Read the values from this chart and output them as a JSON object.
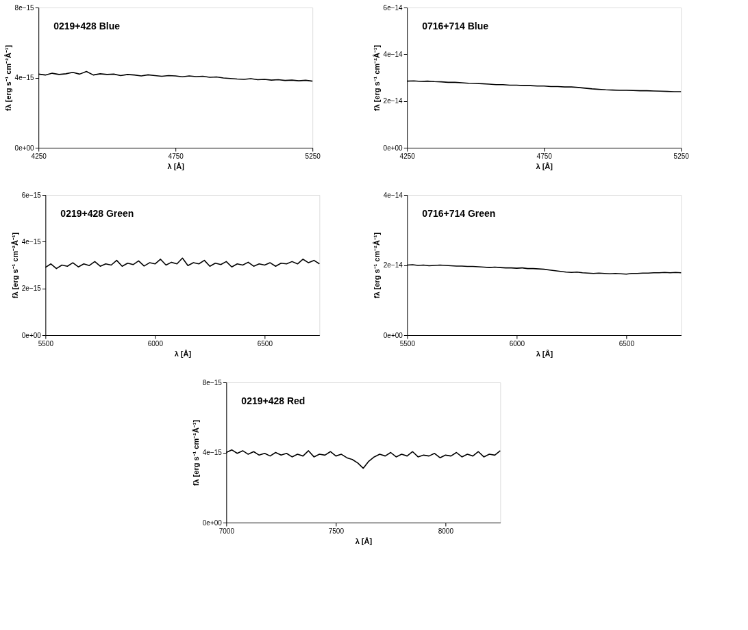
{
  "chart_data": [
    {
      "type": "line",
      "title": "0219+428 Blue",
      "xlabel": "λ [Å]",
      "ylabel": "fλ [erg s⁻¹ cm⁻²Å⁻¹]",
      "color": "#000000",
      "x": [
        4250,
        4275,
        4300,
        4325,
        4350,
        4375,
        4400,
        4425,
        4450,
        4475,
        4500,
        4525,
        4550,
        4575,
        4600,
        4625,
        4650,
        4675,
        4700,
        4725,
        4750,
        4775,
        4800,
        4825,
        4850,
        4875,
        4900,
        4925,
        4950,
        4975,
        5000,
        5025,
        5050,
        5075,
        5100,
        5125,
        5150,
        5175,
        5200,
        5225,
        5250
      ],
      "values": [
        4.2e-15,
        4.15e-15,
        4.25e-15,
        4.18e-15,
        4.22e-15,
        4.3e-15,
        4.2e-15,
        4.35e-15,
        4.15e-15,
        4.22e-15,
        4.18e-15,
        4.2e-15,
        4.12e-15,
        4.18e-15,
        4.15e-15,
        4.1e-15,
        4.16e-15,
        4.12e-15,
        4.08e-15,
        4.12e-15,
        4.1e-15,
        4.05e-15,
        4.1e-15,
        4.06e-15,
        4.08e-15,
        4.02e-15,
        4.04e-15,
        3.98e-15,
        3.95e-15,
        3.92e-15,
        3.9e-15,
        3.94e-15,
        3.88e-15,
        3.9e-15,
        3.86e-15,
        3.88e-15,
        3.84e-15,
        3.86e-15,
        3.82e-15,
        3.85e-15,
        3.8e-15
      ],
      "xlim": [
        4250,
        5250
      ],
      "xticks": [
        4250,
        4750,
        5250
      ],
      "ylim": [
        0,
        8e-15
      ],
      "yticks": [
        {
          "value": 0,
          "label": "0e+00"
        },
        {
          "value": 4e-15,
          "label": "4e−15"
        },
        {
          "value": 8e-15,
          "label": "8e−15"
        }
      ]
    },
    {
      "type": "line",
      "title": "0716+714 Blue",
      "xlabel": "λ [Å]",
      "ylabel": "fλ [erg s⁻¹ cm⁻²Å⁻¹]",
      "color": "#000000",
      "x": [
        4250,
        4275,
        4300,
        4325,
        4350,
        4375,
        4400,
        4425,
        4450,
        4475,
        4500,
        4525,
        4550,
        4575,
        4600,
        4625,
        4650,
        4675,
        4700,
        4725,
        4750,
        4775,
        4800,
        4825,
        4850,
        4875,
        4900,
        4925,
        4950,
        4975,
        5000,
        5025,
        5050,
        5075,
        5100,
        5125,
        5150,
        5175,
        5200,
        5225,
        5250
      ],
      "values": [
        2.85e-14,
        2.86e-14,
        2.84e-14,
        2.85e-14,
        2.83e-14,
        2.82e-14,
        2.8e-14,
        2.8e-14,
        2.78e-14,
        2.76e-14,
        2.75e-14,
        2.74e-14,
        2.72e-14,
        2.7e-14,
        2.7e-14,
        2.68e-14,
        2.68e-14,
        2.66e-14,
        2.66e-14,
        2.64e-14,
        2.64e-14,
        2.62e-14,
        2.62e-14,
        2.6e-14,
        2.6e-14,
        2.58e-14,
        2.55e-14,
        2.52e-14,
        2.5e-14,
        2.48e-14,
        2.47e-14,
        2.46e-14,
        2.46e-14,
        2.45e-14,
        2.44e-14,
        2.44e-14,
        2.43e-14,
        2.42e-14,
        2.41e-14,
        2.4e-14,
        2.4e-14
      ],
      "xlim": [
        4250,
        5250
      ],
      "xticks": [
        4250,
        4750,
        5250
      ],
      "ylim": [
        0,
        6e-14
      ],
      "yticks": [
        {
          "value": 0,
          "label": "0e+00"
        },
        {
          "value": 2e-14,
          "label": "2e−14"
        },
        {
          "value": 4e-14,
          "label": "4e−14"
        },
        {
          "value": 6e-14,
          "label": "6e−14"
        }
      ]
    },
    {
      "type": "line",
      "title": "0219+428 Green",
      "xlabel": "λ [Å]",
      "ylabel": "fλ [erg s⁻¹ cm⁻²Å⁻¹]",
      "color": "#000000",
      "x": [
        5500,
        5525,
        5550,
        5575,
        5600,
        5625,
        5650,
        5675,
        5700,
        5725,
        5750,
        5775,
        5800,
        5825,
        5850,
        5875,
        5900,
        5925,
        5950,
        5975,
        6000,
        6025,
        6050,
        6075,
        6100,
        6125,
        6150,
        6175,
        6200,
        6225,
        6250,
        6275,
        6300,
        6325,
        6350,
        6375,
        6400,
        6425,
        6450,
        6475,
        6500,
        6525,
        6550,
        6575,
        6600,
        6625,
        6650,
        6675,
        6700,
        6725,
        6750
      ],
      "values": [
        2.9e-15,
        3.05e-15,
        2.85e-15,
        3e-15,
        2.95e-15,
        3.1e-15,
        2.92e-15,
        3.05e-15,
        2.98e-15,
        3.15e-15,
        2.95e-15,
        3.05e-15,
        3e-15,
        3.2e-15,
        2.95e-15,
        3.08e-15,
        3.02e-15,
        3.18e-15,
        2.96e-15,
        3.1e-15,
        3.05e-15,
        3.25e-15,
        3e-15,
        3.12e-15,
        3.05e-15,
        3.3e-15,
        2.98e-15,
        3.1e-15,
        3.05e-15,
        3.2e-15,
        2.95e-15,
        3.08e-15,
        3.02e-15,
        3.15e-15,
        2.92e-15,
        3.05e-15,
        3e-15,
        3.12e-15,
        2.95e-15,
        3.05e-15,
        3e-15,
        3.1e-15,
        2.95e-15,
        3.08e-15,
        3.05e-15,
        3.15e-15,
        3.05e-15,
        3.25e-15,
        3.1e-15,
        3.2e-15,
        3.05e-15
      ],
      "xlim": [
        5500,
        6750
      ],
      "xticks": [
        5500,
        6000,
        6500
      ],
      "ylim": [
        0,
        6e-15
      ],
      "yticks": [
        {
          "value": 0,
          "label": "0e+00"
        },
        {
          "value": 2e-15,
          "label": "2e−15"
        },
        {
          "value": 4e-15,
          "label": "4e−15"
        },
        {
          "value": 6e-15,
          "label": "6e−15"
        }
      ]
    },
    {
      "type": "line",
      "title": "0716+714 Green",
      "xlabel": "λ [Å]",
      "ylabel": "fλ [erg s⁻¹ cm⁻²Å⁻¹]",
      "color": "#000000",
      "x": [
        5500,
        5525,
        5550,
        5575,
        5600,
        5625,
        5650,
        5675,
        5700,
        5725,
        5750,
        5775,
        5800,
        5825,
        5850,
        5875,
        5900,
        5925,
        5950,
        5975,
        6000,
        6025,
        6050,
        6075,
        6100,
        6125,
        6150,
        6175,
        6200,
        6225,
        6250,
        6275,
        6300,
        6325,
        6350,
        6375,
        6400,
        6425,
        6450,
        6475,
        6500,
        6525,
        6550,
        6575,
        6600,
        6625,
        6650,
        6675,
        6700,
        6725,
        6750
      ],
      "values": [
        2e-14,
        2.01e-14,
        1.99e-14,
        2e-14,
        1.98e-14,
        1.99e-14,
        2e-14,
        1.99e-14,
        1.98e-14,
        1.97e-14,
        1.97e-14,
        1.96e-14,
        1.96e-14,
        1.95e-14,
        1.94e-14,
        1.93e-14,
        1.94e-14,
        1.93e-14,
        1.92e-14,
        1.92e-14,
        1.91e-14,
        1.92e-14,
        1.9e-14,
        1.9e-14,
        1.89e-14,
        1.88e-14,
        1.86e-14,
        1.84e-14,
        1.82e-14,
        1.8e-14,
        1.79e-14,
        1.8e-14,
        1.78e-14,
        1.77e-14,
        1.76e-14,
        1.77e-14,
        1.76e-14,
        1.75e-14,
        1.76e-14,
        1.75e-14,
        1.74e-14,
        1.76e-14,
        1.76e-14,
        1.77e-14,
        1.77e-14,
        1.78e-14,
        1.78e-14,
        1.79e-14,
        1.78e-14,
        1.79e-14,
        1.78e-14
      ],
      "xlim": [
        5500,
        6750
      ],
      "xticks": [
        5500,
        6000,
        6500
      ],
      "ylim": [
        0,
        4e-14
      ],
      "yticks": [
        {
          "value": 0,
          "label": "0e+00"
        },
        {
          "value": 2e-14,
          "label": "2e−14"
        },
        {
          "value": 4e-14,
          "label": "4e−14"
        }
      ]
    },
    {
      "type": "line",
      "title": "0219+428 Red",
      "xlabel": "λ [Å]",
      "ylabel": "fλ [erg s⁻¹ cm⁻²Å⁻¹]",
      "color": "#000000",
      "x": [
        7000,
        7025,
        7050,
        7075,
        7100,
        7125,
        7150,
        7175,
        7200,
        7225,
        7250,
        7275,
        7300,
        7325,
        7350,
        7375,
        7400,
        7425,
        7450,
        7475,
        7500,
        7525,
        7550,
        7575,
        7600,
        7625,
        7650,
        7675,
        7700,
        7725,
        7750,
        7775,
        7800,
        7825,
        7850,
        7875,
        7900,
        7925,
        7950,
        7975,
        8000,
        8025,
        8050,
        8075,
        8100,
        8125,
        8150,
        8175,
        8200,
        8225,
        8250
      ],
      "values": [
        4e-15,
        4.15e-15,
        3.95e-15,
        4.1e-15,
        3.9e-15,
        4.05e-15,
        3.85e-15,
        3.95e-15,
        3.8e-15,
        4e-15,
        3.85e-15,
        3.95e-15,
        3.75e-15,
        3.9e-15,
        3.8e-15,
        4.1e-15,
        3.75e-15,
        3.9e-15,
        3.85e-15,
        4.05e-15,
        3.8e-15,
        3.9e-15,
        3.7e-15,
        3.6e-15,
        3.4e-15,
        3.1e-15,
        3.5e-15,
        3.75e-15,
        3.9e-15,
        3.8e-15,
        4e-15,
        3.75e-15,
        3.9e-15,
        3.8e-15,
        4.05e-15,
        3.75e-15,
        3.85e-15,
        3.8e-15,
        3.95e-15,
        3.7e-15,
        3.85e-15,
        3.8e-15,
        4e-15,
        3.75e-15,
        3.9e-15,
        3.8e-15,
        4.05e-15,
        3.75e-15,
        3.9e-15,
        3.85e-15,
        4.1e-15
      ],
      "xlim": [
        7000,
        8250
      ],
      "xticks": [
        7000,
        7500,
        8000
      ],
      "ylim": [
        0,
        8e-15
      ],
      "yticks": [
        {
          "value": 0,
          "label": "0e+00"
        },
        {
          "value": 4e-15,
          "label": "4e−15"
        },
        {
          "value": 8e-15,
          "label": "8e−15"
        }
      ]
    }
  ]
}
